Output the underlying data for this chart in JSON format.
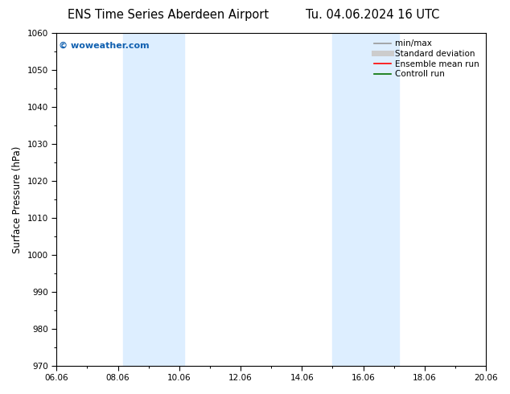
{
  "title_left": "ENS Time Series Aberdeen Airport",
  "title_right": "Tu. 04.06.2024 16 UTC",
  "ylabel": "Surface Pressure (hPa)",
  "ylim": [
    970,
    1060
  ],
  "yticks": [
    970,
    980,
    990,
    1000,
    1010,
    1020,
    1030,
    1040,
    1050,
    1060
  ],
  "xlim_start": 0.0,
  "xlim_end": 14.0,
  "xtick_labels": [
    "06.06",
    "08.06",
    "10.06",
    "12.06",
    "14.06",
    "16.06",
    "18.06",
    "20.06"
  ],
  "xtick_positions": [
    0,
    2,
    4,
    6,
    8,
    10,
    12,
    14
  ],
  "shaded_bands": [
    {
      "x_start": 2.166,
      "x_end": 4.166
    },
    {
      "x_start": 9.0,
      "x_end": 11.166
    }
  ],
  "shade_color": "#ddeeff",
  "background_color": "#ffffff",
  "watermark": "© woweather.com",
  "watermark_color": "#1060b0",
  "legend_entries": [
    {
      "label": "min/max",
      "color": "#999999",
      "lw": 1.2,
      "linestyle": "-"
    },
    {
      "label": "Standard deviation",
      "color": "#cccccc",
      "lw": 5,
      "linestyle": "-"
    },
    {
      "label": "Ensemble mean run",
      "color": "#ff0000",
      "lw": 1.2,
      "linestyle": "-"
    },
    {
      "label": "Controll run",
      "color": "#007000",
      "lw": 1.2,
      "linestyle": "-"
    }
  ],
  "title_fontsize": 10.5,
  "axis_label_fontsize": 8.5,
  "tick_fontsize": 7.5,
  "legend_fontsize": 7.5,
  "watermark_fontsize": 8
}
